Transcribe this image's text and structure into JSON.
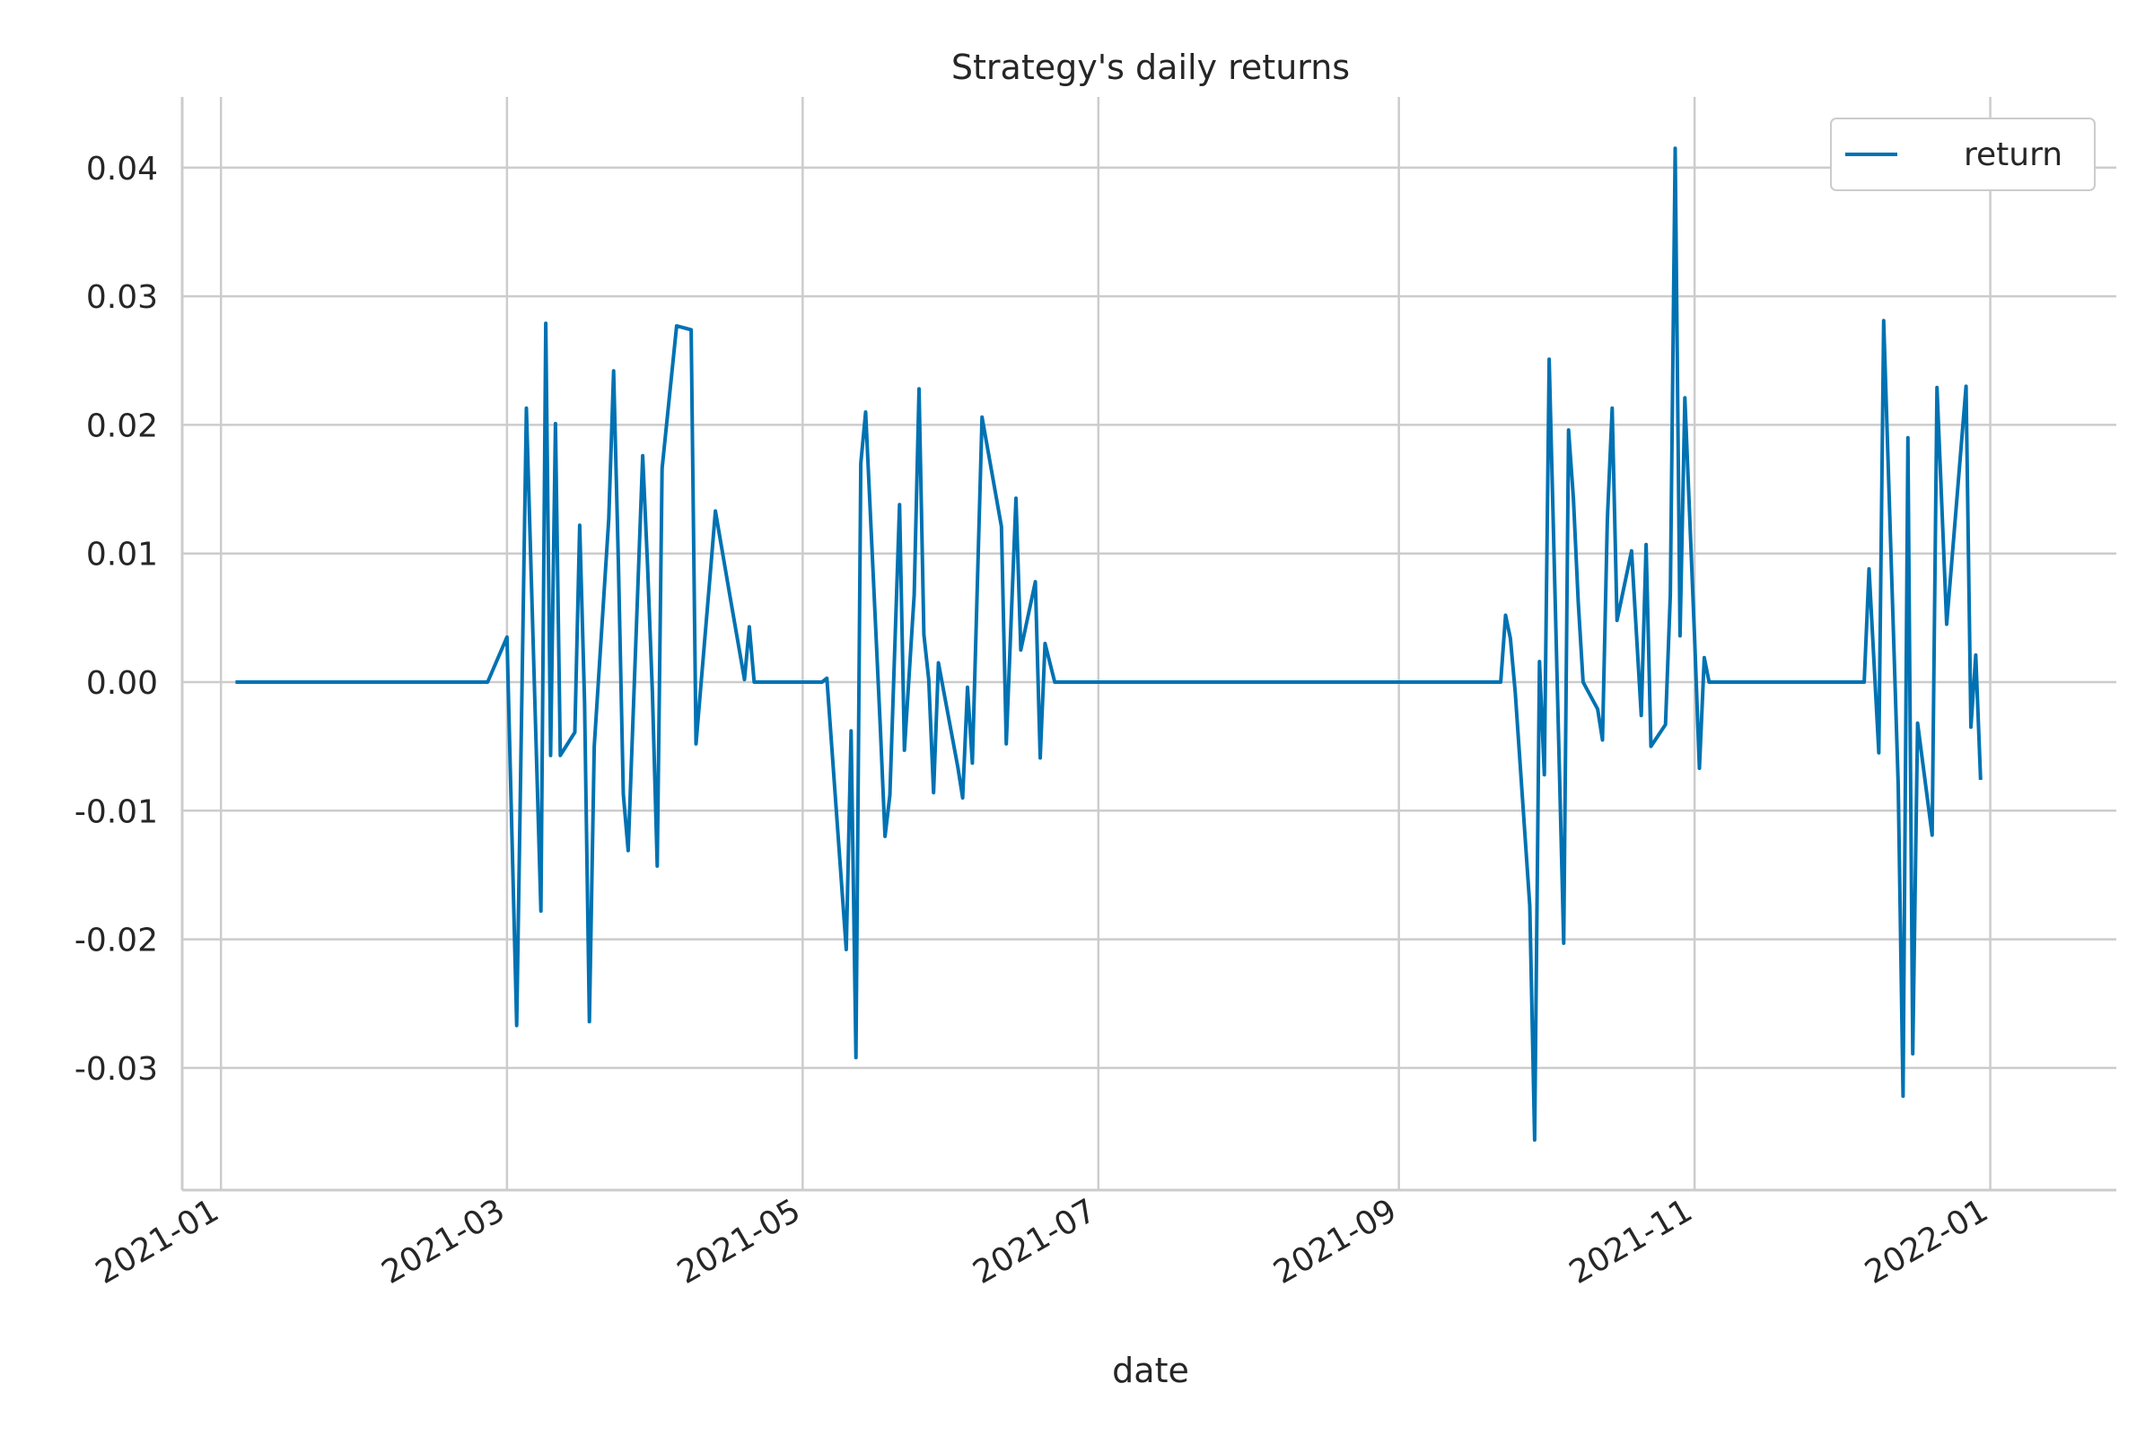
{
  "chart_data": {
    "type": "line",
    "title": "Strategy's daily returns",
    "xlabel": "date",
    "ylabel": "",
    "x_range": [
      "2020-12-24",
      "2022-01-27"
    ],
    "ylim": [
      -0.0395,
      0.0455
    ],
    "x_ticks": [
      "2021-01-01",
      "2021-03-01",
      "2021-05-01",
      "2021-07-01",
      "2021-09-01",
      "2021-11-01",
      "2022-01-01"
    ],
    "x_tick_labels": [
      "2021-01",
      "2021-03",
      "2021-05",
      "2021-07",
      "2021-09",
      "2021-11",
      "2022-01"
    ],
    "y_ticks": [
      0.04,
      0.03,
      0.02,
      0.01,
      0.0,
      -0.01,
      -0.02,
      -0.03
    ],
    "y_tick_labels": [
      "0.04",
      "0.03",
      "0.02",
      "0.01",
      "0.00",
      "-0.01",
      "-0.02",
      "-0.03"
    ],
    "grid": true,
    "legend": {
      "position": "top-right",
      "entries": [
        "return"
      ]
    },
    "colors": {
      "return": "#0072b2",
      "grid": "#cccccc",
      "axis": "#cccccc"
    },
    "series": [
      {
        "name": "return",
        "points": [
          [
            "2021-01-04",
            0.0
          ],
          [
            "2021-02-25",
            0.0
          ],
          [
            "2021-03-01",
            0.0035
          ],
          [
            "2021-03-03",
            -0.0267
          ],
          [
            "2021-03-05",
            0.0213
          ],
          [
            "2021-03-08",
            -0.0178
          ],
          [
            "2021-03-09",
            0.0279
          ],
          [
            "2021-03-10",
            -0.0057
          ],
          [
            "2021-03-11",
            0.0201
          ],
          [
            "2021-03-12",
            -0.0057
          ],
          [
            "2021-03-15",
            -0.0039
          ],
          [
            "2021-03-16",
            0.0122
          ],
          [
            "2021-03-17",
            -0.0015
          ],
          [
            "2021-03-18",
            -0.0264
          ],
          [
            "2021-03-19",
            -0.005
          ],
          [
            "2021-03-22",
            0.0127
          ],
          [
            "2021-03-23",
            0.0242
          ],
          [
            "2021-03-24",
            0.009
          ],
          [
            "2021-03-25",
            -0.0087
          ],
          [
            "2021-03-26",
            -0.0131
          ],
          [
            "2021-03-29",
            0.0176
          ],
          [
            "2021-03-30",
            0.0091
          ],
          [
            "2021-03-31",
            -0.0008
          ],
          [
            "2021-04-01",
            -0.0143
          ],
          [
            "2021-04-02",
            0.0166
          ],
          [
            "2021-04-05",
            0.0277
          ],
          [
            "2021-04-08",
            0.0274
          ],
          [
            "2021-04-09",
            -0.0048
          ],
          [
            "2021-04-12",
            0.0087
          ],
          [
            "2021-04-13",
            0.0133
          ],
          [
            "2021-04-16",
            0.0067
          ],
          [
            "2021-04-19",
            0.0002
          ],
          [
            "2021-04-20",
            0.0043
          ],
          [
            "2021-04-21",
            0.0
          ],
          [
            "2021-05-05",
            0.0
          ],
          [
            "2021-05-06",
            0.0003
          ],
          [
            "2021-05-10",
            -0.0208
          ],
          [
            "2021-05-11",
            -0.0038
          ],
          [
            "2021-05-12",
            -0.0292
          ],
          [
            "2021-05-13",
            0.017
          ],
          [
            "2021-05-14",
            0.021
          ],
          [
            "2021-05-17",
            -0.0033
          ],
          [
            "2021-05-18",
            -0.012
          ],
          [
            "2021-05-19",
            -0.0088
          ],
          [
            "2021-05-21",
            0.0138
          ],
          [
            "2021-05-22",
            -0.0053
          ],
          [
            "2021-05-24",
            0.0068
          ],
          [
            "2021-05-25",
            0.0228
          ],
          [
            "2021-05-26",
            0.0037
          ],
          [
            "2021-05-27",
            0.0002
          ],
          [
            "2021-05-28",
            -0.0086
          ],
          [
            "2021-05-29",
            0.0015
          ],
          [
            "2021-06-02",
            -0.0066
          ],
          [
            "2021-06-03",
            -0.009
          ],
          [
            "2021-06-04",
            -0.0004
          ],
          [
            "2021-06-05",
            -0.0063
          ],
          [
            "2021-06-07",
            0.0206
          ],
          [
            "2021-06-11",
            0.0121
          ],
          [
            "2021-06-12",
            -0.0048
          ],
          [
            "2021-06-14",
            0.0143
          ],
          [
            "2021-06-15",
            0.0025
          ],
          [
            "2021-06-18",
            0.0078
          ],
          [
            "2021-06-19",
            -0.0059
          ],
          [
            "2021-06-20",
            0.003
          ],
          [
            "2021-06-22",
            0.0
          ],
          [
            "2021-09-22",
            0.0
          ],
          [
            "2021-09-23",
            0.0052
          ],
          [
            "2021-09-24",
            0.0034
          ],
          [
            "2021-09-25",
            -0.0008
          ],
          [
            "2021-09-28",
            -0.0174
          ],
          [
            "2021-09-29",
            -0.0356
          ],
          [
            "2021-09-30",
            0.0016
          ],
          [
            "2021-10-01",
            -0.0072
          ],
          [
            "2021-10-02",
            0.0251
          ],
          [
            "2021-10-05",
            -0.0203
          ],
          [
            "2021-10-06",
            0.0196
          ],
          [
            "2021-10-07",
            0.0143
          ],
          [
            "2021-10-08",
            0.0062
          ],
          [
            "2021-10-09",
            0.0
          ],
          [
            "2021-10-12",
            -0.0021
          ],
          [
            "2021-10-13",
            -0.0045
          ],
          [
            "2021-10-14",
            0.0126
          ],
          [
            "2021-10-15",
            0.0213
          ],
          [
            "2021-10-16",
            0.0048
          ],
          [
            "2021-10-19",
            0.0102
          ],
          [
            "2021-10-21",
            -0.0026
          ],
          [
            "2021-10-22",
            0.0107
          ],
          [
            "2021-10-23",
            -0.005
          ],
          [
            "2021-10-26",
            -0.0033
          ],
          [
            "2021-10-27",
            0.0068
          ],
          [
            "2021-10-28",
            0.0415
          ],
          [
            "2021-10-29",
            0.0036
          ],
          [
            "2021-10-30",
            0.0221
          ],
          [
            "2021-11-01",
            0.0035
          ],
          [
            "2021-11-02",
            -0.0067
          ],
          [
            "2021-11-03",
            0.0019
          ],
          [
            "2021-11-04",
            0.0
          ],
          [
            "2021-12-06",
            0.0
          ],
          [
            "2021-12-07",
            0.0088
          ],
          [
            "2021-12-09",
            -0.0055
          ],
          [
            "2021-12-10",
            0.0281
          ],
          [
            "2021-12-13",
            -0.008
          ],
          [
            "2021-12-14",
            -0.0322
          ],
          [
            "2021-12-15",
            0.019
          ],
          [
            "2021-12-16",
            -0.0289
          ],
          [
            "2021-12-17",
            -0.0032
          ],
          [
            "2021-12-20",
            -0.0119
          ],
          [
            "2021-12-21",
            0.0229
          ],
          [
            "2021-12-23",
            0.0045
          ],
          [
            "2021-12-27",
            0.023
          ],
          [
            "2021-12-28",
            -0.0035
          ],
          [
            "2021-12-29",
            0.0021
          ],
          [
            "2021-12-30",
            -0.0076
          ]
        ]
      }
    ]
  }
}
